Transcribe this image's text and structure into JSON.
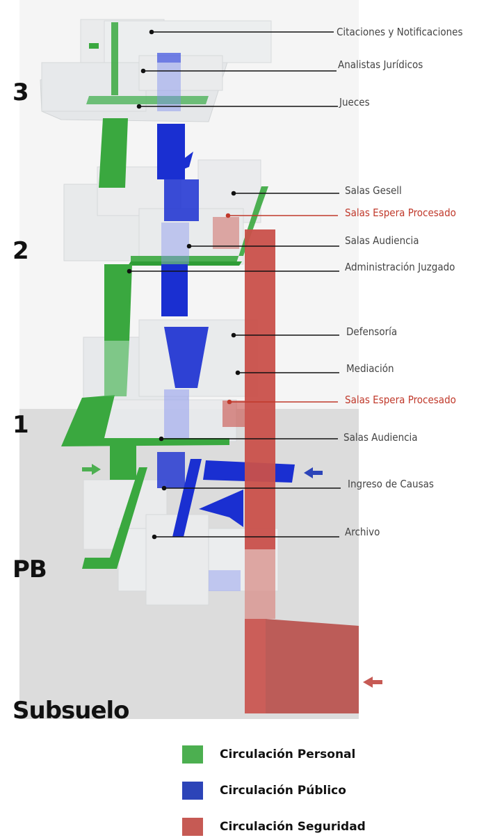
{
  "floors": {
    "f3": "3",
    "f2": "2",
    "f1": "1",
    "pb": "PB",
    "sub": "Subsuelo"
  },
  "labels": {
    "citaciones": "Citaciones y Notificaciones",
    "analistas": "Analistas Jurídicos",
    "jueces": "Jueces",
    "gesell": "Salas Gesell",
    "espera2": "Salas Espera Procesado",
    "audiencia2": "Salas Audiencia",
    "administracion": "Administración Juzgado",
    "defensoria": "Defensoría",
    "mediacion": "Mediación",
    "espera1": "Salas Espera Procesado",
    "audiencia1": "Salas Audiencia",
    "ingreso": "Ingreso de Causas",
    "archivo": "Archivo"
  },
  "legend": [
    {
      "label": "Circulación Personal",
      "color": "#4caf50"
    },
    {
      "label": "Circulación Público",
      "color": "#2c44b8"
    },
    {
      "label": "Circulación Seguridad",
      "color": "#c65a54"
    }
  ],
  "colors": {
    "personal": "#3aa83f",
    "publico": "#1a2fd1",
    "seguridad": "#c9504a",
    "ground": "#dcdcdc",
    "glass": "#eef0f2"
  }
}
